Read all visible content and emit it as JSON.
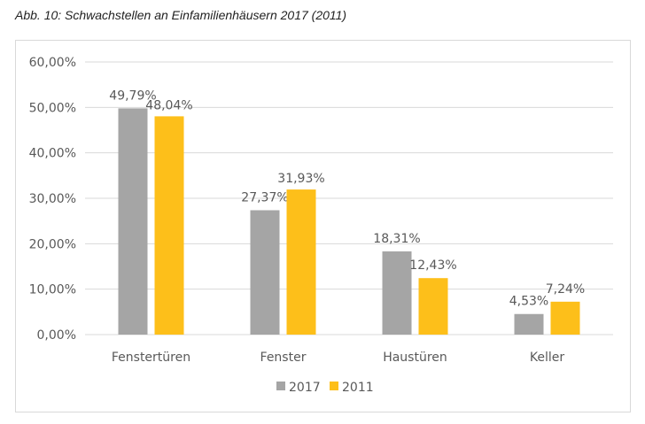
{
  "chart_data": {
    "type": "bar",
    "title": "Abb. 10: Schwachstellen an Einfamilienhäusern 2017 (2011)",
    "categories": [
      "Fenstertüren",
      "Fenster",
      "Haustüren",
      "Keller"
    ],
    "series": [
      {
        "name": "2017",
        "color": "#a5a5a5",
        "values": [
          49.79,
          27.37,
          18.31,
          4.53
        ],
        "labels": [
          "49,79%",
          "27,37%",
          "18,31%",
          "4,53%"
        ]
      },
      {
        "name": "2011",
        "color": "#fdbf1a",
        "values": [
          48.04,
          31.93,
          12.43,
          7.24
        ],
        "labels": [
          "48,04%",
          "31,93%",
          "12,43%",
          "7,24%"
        ]
      }
    ],
    "ylim": [
      0,
      60
    ],
    "yticks": [
      "0,00%",
      "10,00%",
      "20,00%",
      "30,00%",
      "40,00%",
      "50,00%",
      "60,00%"
    ],
    "grid": true,
    "legend": "bottom"
  }
}
